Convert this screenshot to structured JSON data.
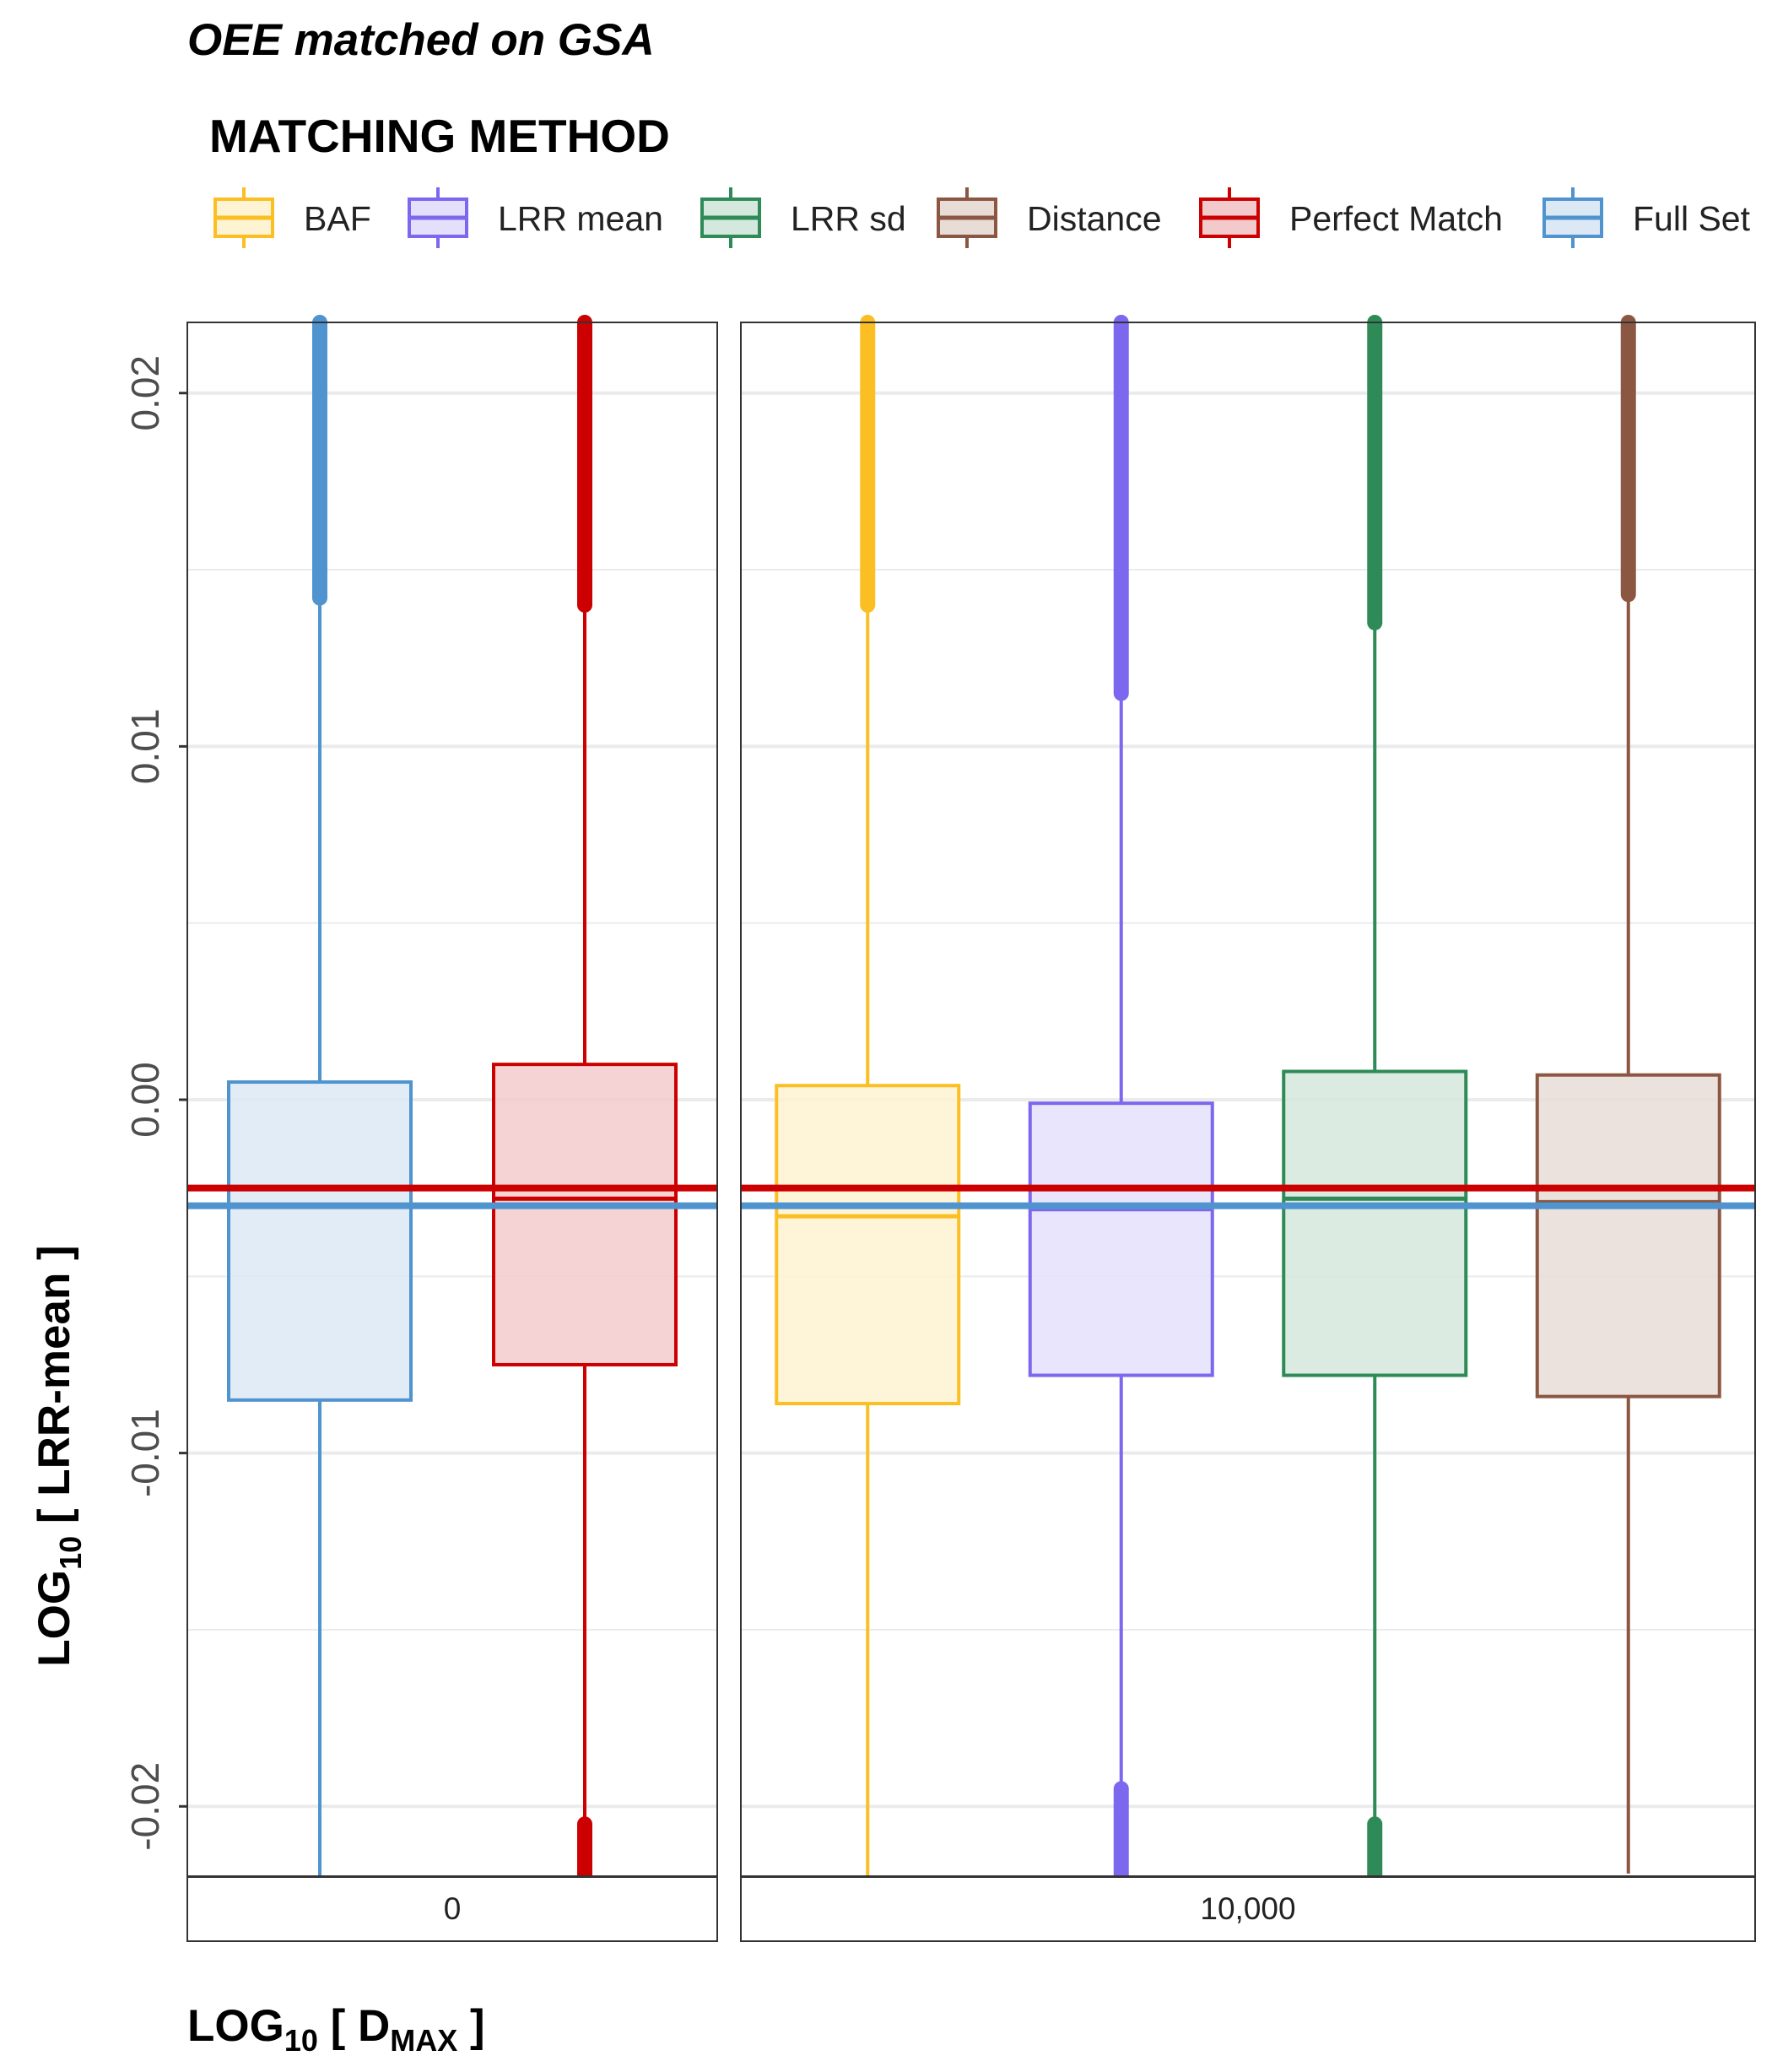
{
  "chart_data": {
    "type": "boxplot",
    "title": "OEE matched on GSA",
    "legend": {
      "title": "MATCHING METHOD",
      "position": "top",
      "entries": [
        {
          "name": "BAF",
          "stroke": "#FBBF24",
          "fill": "#FEF3D2"
        },
        {
          "name": "LRR mean",
          "stroke": "#7B68EE",
          "fill": "#E4E0FC"
        },
        {
          "name": "LRR sd",
          "stroke": "#2E8B57",
          "fill": "#D5E8DD"
        },
        {
          "name": "Distance",
          "stroke": "#8B5742",
          "fill": "#E8DCD7"
        },
        {
          "name": "Perfect Match",
          "stroke": "#CC0000",
          "fill": "#F3CACB"
        },
        {
          "name": "Full Set",
          "stroke": "#4F93CF",
          "fill": "#DCE9F4"
        }
      ]
    },
    "y_axis": {
      "label_prefix": "LOG",
      "label_sub": "10",
      "label_rest": " [ LRR-mean ]",
      "ylim": [
        -0.022,
        0.022
      ],
      "ticks": [
        {
          "value": -0.02,
          "label": "-0.02"
        },
        {
          "value": -0.01,
          "label": "-0.01"
        },
        {
          "value": 0.0,
          "label": "0.00"
        },
        {
          "value": 0.01,
          "label": "0.01"
        },
        {
          "value": 0.02,
          "label": "0.02"
        }
      ],
      "minor_grid": [
        -0.015,
        -0.005,
        0.005,
        0.015
      ]
    },
    "x_axis": {
      "label_prefix": "LOG",
      "label_sub": "10",
      "label_mid": " [ D",
      "label_sub2": "MAX",
      "label_rest": " ]"
    },
    "reference_lines": [
      {
        "name": "Perfect Match",
        "value": -0.0025,
        "color": "#CC0000"
      },
      {
        "name": "Full Set",
        "value": -0.003,
        "color": "#4F93CF"
      }
    ],
    "panels": [
      {
        "strip_label": "0",
        "boxes": [
          {
            "series": "Full Set",
            "q1": -0.0085,
            "median": -0.003,
            "q3": 0.0005,
            "whisker_low": -0.022,
            "whisker_high": 0.0142,
            "outliers_high_from": 0.0142,
            "outliers_low_to": null
          },
          {
            "series": "Perfect Match",
            "q1": -0.0075,
            "median": -0.0028,
            "q3": 0.001,
            "whisker_low": -0.0205,
            "whisker_high": 0.014,
            "outliers_high_from": 0.014,
            "outliers_low_to": -0.0205
          }
        ]
      },
      {
        "strip_label": "10,000",
        "boxes": [
          {
            "series": "BAF",
            "q1": -0.0086,
            "median": -0.0033,
            "q3": 0.0004,
            "whisker_low": -0.022,
            "whisker_high": 0.014,
            "outliers_high_from": 0.014,
            "outliers_low_to": null
          },
          {
            "series": "LRR mean",
            "q1": -0.0078,
            "median": -0.0031,
            "q3": -0.0001,
            "whisker_low": -0.0195,
            "whisker_high": 0.0115,
            "outliers_high_from": 0.0115,
            "outliers_low_to": -0.0195
          },
          {
            "series": "LRR sd",
            "q1": -0.0078,
            "median": -0.0028,
            "q3": 0.0008,
            "whisker_low": -0.0205,
            "whisker_high": 0.0135,
            "outliers_high_from": 0.0135,
            "outliers_low_to": -0.0205
          },
          {
            "series": "Distance",
            "q1": -0.0084,
            "median": -0.0029,
            "q3": 0.0007,
            "whisker_low": -0.0219,
            "whisker_high": 0.0143,
            "outliers_high_from": 0.0143,
            "outliers_low_to": null
          }
        ]
      }
    ]
  }
}
